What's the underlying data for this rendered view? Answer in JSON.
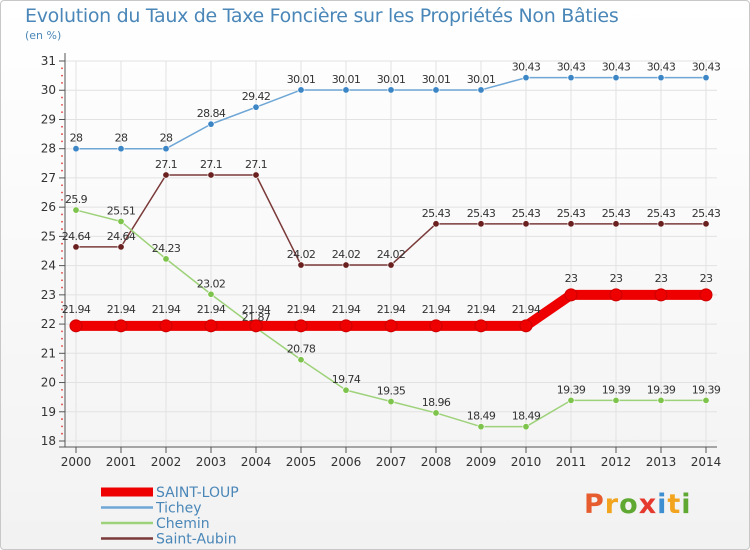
{
  "title": "Evolution du Taux de Taxe Foncière sur les Propriétés Non Bâties",
  "unit": "(en %)",
  "logo": {
    "text": "Proxiti",
    "colors": [
      "#e65c2e",
      "#f2a41e",
      "#5fa832",
      "#e6392e",
      "#3d8fd1",
      "#f2a41e",
      "#5fa832"
    ]
  },
  "chart_data": {
    "type": "line",
    "title": "Evolution du Taux de Taxe Foncière sur les Propriétés Non Bâties",
    "ylabel": "(en %)",
    "ylim": [
      18,
      31
    ],
    "yticks": [
      "18",
      "19",
      "20",
      "21",
      "22",
      "23",
      "24",
      "25",
      "26",
      "27",
      "28",
      "29",
      "30",
      "31"
    ],
    "x": [
      "2000",
      "2001",
      "2002",
      "2003",
      "2004",
      "2005",
      "2006",
      "2007",
      "2008",
      "2009",
      "2010",
      "2011",
      "2012",
      "2013",
      "2014"
    ],
    "series": [
      {
        "name": "Tichey",
        "color": "#6ea6d6",
        "marker": "#3d86c6",
        "values": [
          28,
          28,
          28,
          28.84,
          29.42,
          30.01,
          30.01,
          30.01,
          30.01,
          30.01,
          30.43,
          30.43,
          30.43,
          30.43,
          30.43
        ],
        "labels": [
          "28",
          "28",
          "28",
          "28.84",
          "29.42",
          "30.01",
          "30.01",
          "30.01",
          "30.01",
          "30.01",
          "30.43",
          "30.43",
          "30.43",
          "30.43",
          "30.43"
        ]
      },
      {
        "name": "Saint-Aubin",
        "color": "#7b3a3a",
        "marker": "#6b2020",
        "values": [
          24.64,
          24.64,
          27.1,
          27.1,
          27.1,
          24.02,
          24.02,
          24.02,
          25.43,
          25.43,
          25.43,
          25.43,
          25.43,
          25.43,
          25.43
        ],
        "labels": [
          "24.64",
          "24.64",
          "27.1",
          "27.1",
          "27.1",
          "24.02",
          "24.02",
          "24.02",
          "25.43",
          "25.43",
          "25.43",
          "25.43",
          "25.43",
          "25.43",
          "25.43"
        ]
      },
      {
        "name": "Chemin",
        "color": "#9ed27a",
        "marker": "#7ec44c",
        "values": [
          25.9,
          25.51,
          24.23,
          23.02,
          21.87,
          20.78,
          19.74,
          19.35,
          18.96,
          18.49,
          18.49,
          19.39,
          19.39,
          19.39,
          19.39
        ],
        "labels": [
          "25.9",
          "25.51",
          "24.23",
          "23.02",
          "21.87",
          "20.78",
          "19.74",
          "19.35",
          "18.96",
          "18.49",
          "18.49",
          "19.39",
          "19.39",
          "19.39",
          "19.39"
        ]
      },
      {
        "name": "SAINT-LOUP",
        "color": "#ee0000",
        "marker": "#ee0000",
        "values": [
          21.94,
          21.94,
          21.94,
          21.94,
          21.94,
          21.94,
          21.94,
          21.94,
          21.94,
          21.94,
          21.94,
          23,
          23,
          23,
          23
        ],
        "labels": [
          "21.94",
          "21.94",
          "21.94",
          "21.94",
          "21.94",
          "21.94",
          "21.94",
          "21.94",
          "21.94",
          "21.94",
          "21.94",
          "23",
          "23",
          "23",
          "23"
        ]
      }
    ],
    "legend": [
      {
        "name": "SAINT-LOUP",
        "color": "#ee0000",
        "thick": true
      },
      {
        "name": "Tichey",
        "color": "#6ea6d6",
        "thick": false
      },
      {
        "name": "Chemin",
        "color": "#9ed27a",
        "thick": false
      },
      {
        "name": "Saint-Aubin",
        "color": "#7b3a3a",
        "thick": false
      }
    ],
    "legend_position": "bottom-left"
  }
}
